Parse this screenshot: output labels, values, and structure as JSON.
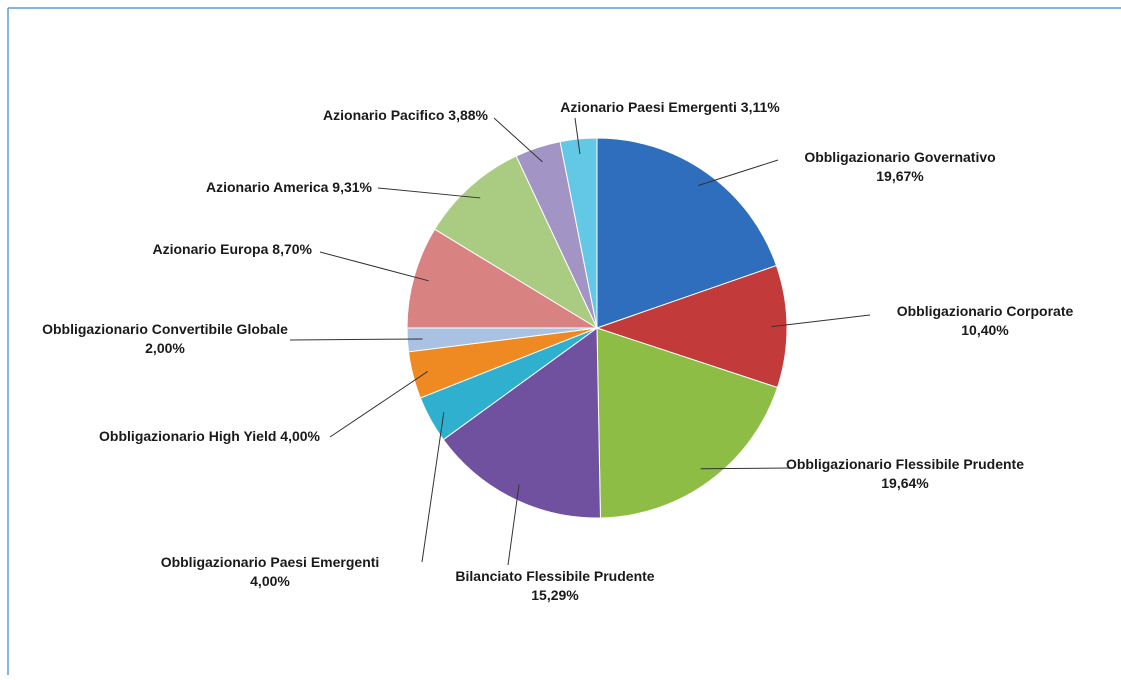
{
  "chart_data": {
    "type": "pie",
    "categories": [
      "Obbligazionario Governativo",
      "Obbligazionario Corporate",
      "Obbligazionario Flessibile Prudente",
      "Bilanciato Flessibile Prudente",
      "Obbligazionario Paesi Emergenti",
      "Obbligazionario High Yield",
      "Obbligazionario Convertibile Globale",
      "Azionario Europa",
      "Azionario America",
      "Azionario Pacifico",
      "Azionario Paesi Emergenti"
    ],
    "values": [
      19.67,
      10.4,
      19.64,
      15.29,
      4.0,
      4.0,
      2.0,
      8.7,
      9.31,
      3.88,
      3.11
    ],
    "value_labels": [
      "19,67%",
      "10,40%",
      "19,64%",
      "15,29%",
      "4,00%",
      "4,00%",
      "2,00%",
      "8,70%",
      "9,31%",
      "3,88%",
      "3,11%"
    ],
    "colors": [
      "#2f6ebd",
      "#c23a3a",
      "#8dbd44",
      "#6f51a0",
      "#2fb0cf",
      "#ef8a23",
      "#a9c1e2",
      "#d98282",
      "#a9cc82",
      "#a394c6",
      "#62c8e6"
    ]
  }
}
